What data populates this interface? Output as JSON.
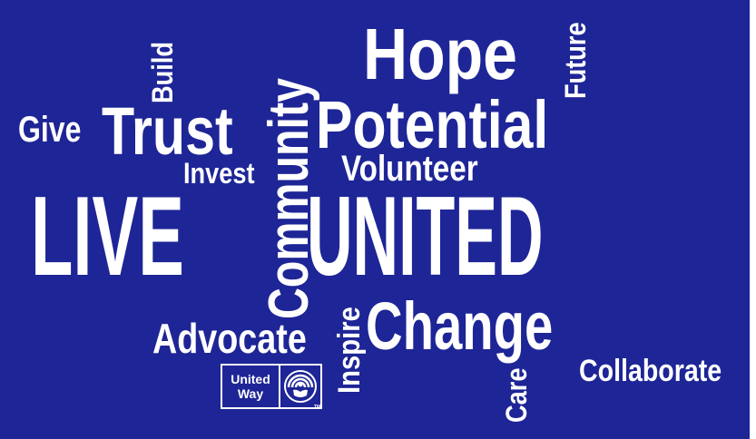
{
  "wordcloud": {
    "live": "LIVE",
    "united": "UNITED",
    "hope": "Hope",
    "potential": "Potential",
    "trust": "Trust",
    "give": "Give",
    "build": "Build",
    "community": "Community",
    "invest": "Invest",
    "volunteer": "Volunteer",
    "future": "Future",
    "change": "Change",
    "advocate": "Advocate",
    "inspire": "Inspire",
    "care": "Care",
    "collaborate": "Collaborate"
  },
  "logo": {
    "line1": "United",
    "line2": "Way",
    "tm": "TM",
    "icon": "united-way-hand-rainbow-icon"
  },
  "colors": {
    "background": "#1e2596",
    "text": "#ffffff",
    "border": "#ffffff"
  }
}
